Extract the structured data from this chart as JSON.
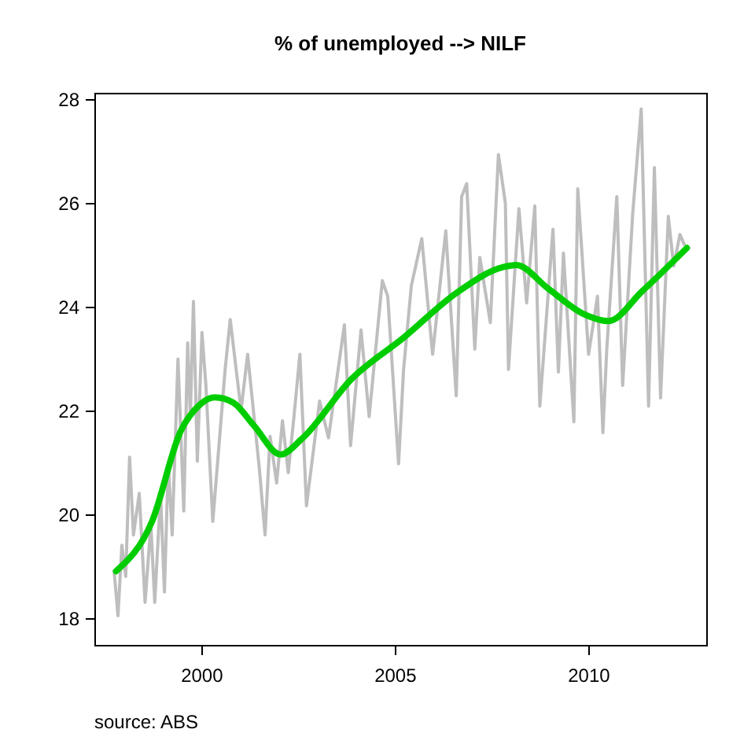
{
  "chart_data": {
    "type": "line",
    "title": "% of unemployed --> NILF",
    "annotations": [
      "source: ABS"
    ],
    "xlim": [
      1997.24,
      2013.05
    ],
    "xticks": [
      2000,
      2005,
      2010
    ],
    "ylim": [
      17.48,
      28.12
    ],
    "yticks": [
      18,
      20,
      22,
      24,
      26,
      28
    ],
    "grid": false,
    "marker": "none",
    "line_style": "solid",
    "series": [
      {
        "color": "#bebebe",
        "x": [
          1997.75,
          1997.85,
          1997.95,
          1998.05,
          1998.15,
          1998.25,
          1998.4,
          1998.55,
          1998.7,
          1998.8,
          1998.95,
          1999.05,
          1999.15,
          1999.25,
          1999.4,
          1999.55,
          1999.65,
          1999.72,
          1999.8,
          1999.9,
          2000.02,
          2000.12,
          2000.3,
          2000.62,
          2000.75,
          2001.03,
          2001.2,
          2001.5,
          2001.65,
          2001.78,
          2001.95,
          2002.1,
          2002.25,
          2002.4,
          2002.55,
          2002.72,
          2003.06,
          2003.29,
          2003.7,
          2003.86,
          2004.13,
          2004.34,
          2004.68,
          2004.82,
          2005.1,
          2005.23,
          2005.43,
          2005.7,
          2005.98,
          2006.32,
          2006.59,
          2006.73,
          2006.86,
          2007.07,
          2007.2,
          2007.47,
          2007.68,
          2007.86,
          2007.94,
          2008.21,
          2008.41,
          2008.62,
          2008.75,
          2009.09,
          2009.23,
          2009.36,
          2009.63,
          2009.73,
          2010.01,
          2010.24,
          2010.38,
          2010.48,
          2010.74,
          2010.89,
          2011.15,
          2011.37,
          2011.56,
          2011.71,
          2011.87,
          2012.07,
          2012.21,
          2012.37,
          2012.48
        ],
        "values": [
          18.9,
          18.04,
          19.4,
          18.8,
          21.1,
          19.6,
          20.4,
          18.3,
          19.8,
          18.3,
          20.4,
          18.5,
          21.0,
          19.6,
          22.99,
          20.06,
          23.3,
          21.9,
          24.1,
          21.02,
          23.5,
          22.5,
          19.86,
          22.8,
          23.75,
          22.0,
          23.08,
          20.9,
          19.6,
          21.5,
          20.6,
          21.8,
          20.8,
          21.9,
          23.08,
          20.16,
          22.18,
          21.47,
          23.65,
          21.32,
          23.55,
          21.88,
          24.5,
          24.2,
          20.97,
          22.79,
          24.4,
          25.31,
          23.08,
          25.46,
          22.28,
          26.12,
          26.37,
          23.18,
          24.95,
          23.69,
          26.93,
          25.99,
          22.79,
          25.89,
          24.07,
          25.94,
          22.08,
          25.49,
          22.74,
          25.03,
          21.78,
          26.27,
          23.08,
          24.2,
          21.57,
          23.18,
          26.12,
          22.48,
          25.79,
          27.81,
          22.08,
          26.68,
          22.24,
          25.74,
          24.78,
          25.39,
          25.2
        ]
      },
      {
        "color": "#00cd00",
        "x": [
          1997.8,
          1998.73,
          1999.47,
          1999.95,
          2000.35,
          2000.83,
          2001.37,
          2002.05,
          2002.6,
          2003.88,
          2005.23,
          2006.59,
          2007.8,
          2008.14,
          2008.96,
          2009.9,
          2010.52,
          2011.4,
          2012.55
        ],
        "values": [
          18.9,
          19.86,
          21.6,
          22.1,
          22.25,
          22.15,
          21.7,
          21.15,
          21.45,
          22.6,
          23.4,
          24.26,
          24.76,
          24.8,
          24.35,
          23.85,
          23.72,
          24.3,
          25.13
        ]
      }
    ]
  }
}
